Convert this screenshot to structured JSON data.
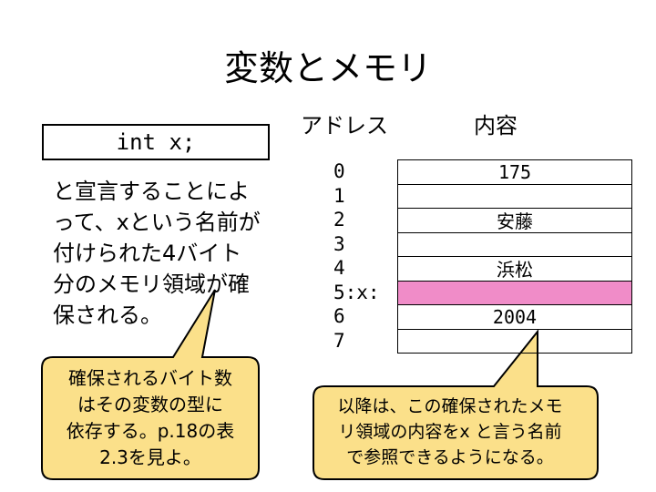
{
  "title": "変数とメモリ",
  "code": "int x;",
  "description": "と宣言することによ\nって、xという名前が\n付けられた4バイト\n分のメモリ領域が確\n保される。",
  "columns": {
    "address": "アドレス",
    "content": "内容"
  },
  "addresses": [
    "0",
    "1",
    "2",
    "3",
    "4",
    "5:x:",
    "6",
    "7"
  ],
  "memory": [
    "175",
    "",
    "安藤",
    "",
    "浜松",
    "",
    "2004",
    ""
  ],
  "highlight_color": "#f08cc8",
  "callout_fill": "#fbe08a",
  "callout_left": "確保されるバイト数\nはその変数の型に\n依存する。p.18の表\n2.3を見よ。",
  "callout_right": "以降は、この確保されたメモ\nリ領域の内容をx と言う名前\nで参照できるようになる。"
}
